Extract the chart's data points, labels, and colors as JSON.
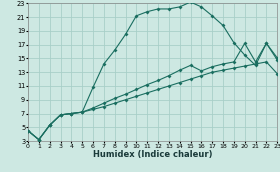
{
  "xlabel": "Humidex (Indice chaleur)",
  "background_color": "#cde8e2",
  "grid_color": "#a8cfc8",
  "line_color": "#1a6e60",
  "xlim": [
    0,
    23
  ],
  "ylim": [
    3,
    23
  ],
  "xticks": [
    0,
    1,
    2,
    3,
    4,
    5,
    6,
    7,
    8,
    9,
    10,
    11,
    12,
    13,
    14,
    15,
    16,
    17,
    18,
    19,
    20,
    21,
    22,
    23
  ],
  "yticks": [
    3,
    5,
    7,
    9,
    11,
    13,
    15,
    17,
    19,
    21,
    23
  ],
  "curve_top_x": [
    0,
    1,
    2,
    3,
    4,
    5,
    6,
    7,
    8,
    9,
    10,
    11,
    12,
    13,
    14,
    15,
    16,
    17,
    18,
    19,
    20,
    21,
    22,
    23
  ],
  "curve_top_y": [
    4.5,
    3.2,
    5.3,
    6.8,
    7.0,
    7.2,
    10.8,
    14.2,
    16.2,
    18.5,
    21.2,
    21.8,
    22.2,
    22.2,
    22.5,
    23.2,
    22.5,
    21.2,
    19.8,
    17.3,
    15.5,
    14.0,
    17.2,
    15.1
  ],
  "curve_mid_x": [
    0,
    1,
    2,
    3,
    4,
    5,
    6,
    7,
    8,
    9,
    10,
    11,
    12,
    13,
    14,
    15,
    16,
    17,
    18,
    19,
    20,
    21,
    22,
    23
  ],
  "curve_mid_y": [
    4.5,
    3.2,
    5.3,
    6.8,
    7.0,
    7.2,
    7.8,
    8.5,
    9.2,
    9.8,
    10.5,
    11.2,
    11.8,
    12.5,
    13.3,
    14.0,
    13.2,
    13.8,
    14.2,
    14.5,
    17.2,
    14.5,
    17.2,
    14.8
  ],
  "curve_low_x": [
    0,
    1,
    2,
    3,
    4,
    5,
    6,
    7,
    8,
    9,
    10,
    11,
    12,
    13,
    14,
    15,
    16,
    17,
    18,
    19,
    20,
    21,
    22,
    23
  ],
  "curve_low_y": [
    4.5,
    3.2,
    5.3,
    6.8,
    7.0,
    7.2,
    7.6,
    8.0,
    8.5,
    9.0,
    9.5,
    10.0,
    10.5,
    11.0,
    11.5,
    12.0,
    12.5,
    13.0,
    13.3,
    13.6,
    13.9,
    14.2,
    14.5,
    12.8
  ]
}
